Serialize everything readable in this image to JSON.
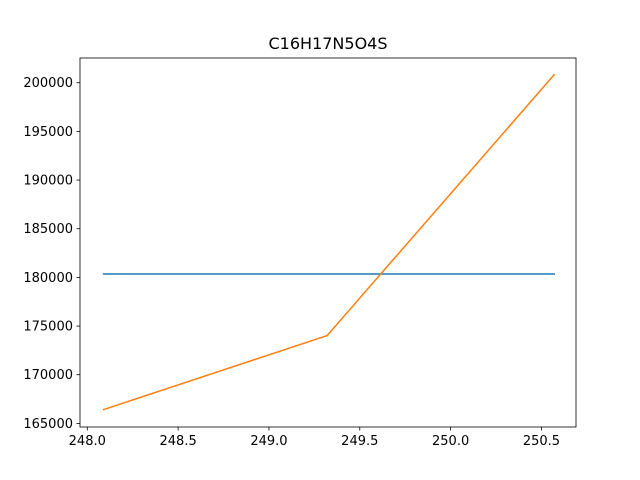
{
  "chart_data": {
    "type": "line",
    "title": "C16H17N5O4S",
    "xlabel": "",
    "ylabel": "",
    "xlim": [
      247.96,
      250.69
    ],
    "ylim": [
      164630,
      202540
    ],
    "grid": false,
    "x_ticks": [
      248.0,
      248.5,
      249.0,
      249.5,
      250.0,
      250.5
    ],
    "x_tick_labels": [
      "248.0",
      "248.5",
      "249.0",
      "249.5",
      "250.0",
      "250.5"
    ],
    "y_ticks": [
      165000,
      170000,
      175000,
      180000,
      185000,
      190000,
      195000,
      200000
    ],
    "y_tick_labels": [
      "165000",
      "170000",
      "175000",
      "180000",
      "185000",
      "190000",
      "195000",
      "200000"
    ],
    "series": [
      {
        "color": "#1f77b4",
        "x": [
          248.09,
          250.57
        ],
        "y": [
          180350,
          180350
        ]
      },
      {
        "color": "#ff7f0e",
        "x": [
          248.09,
          249.32,
          250.57
        ],
        "y": [
          166420,
          174020,
          200820
        ]
      }
    ]
  }
}
